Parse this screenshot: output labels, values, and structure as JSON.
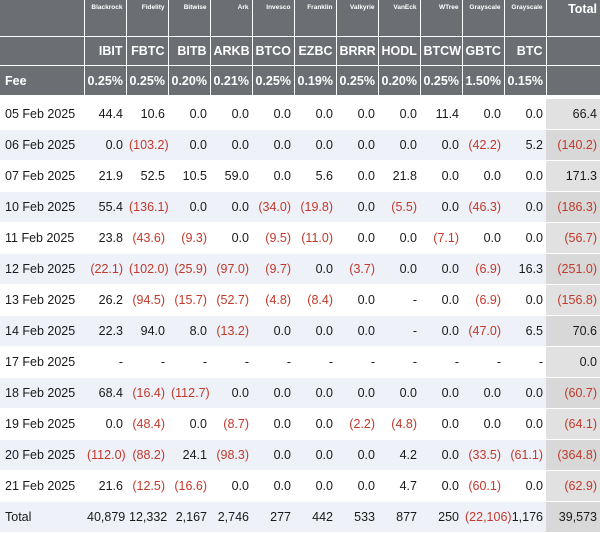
{
  "chart_data": {
    "type": "table",
    "columns": [
      {
        "issuer": "Blackrock",
        "ticker": "IBIT",
        "fee": "0.25%"
      },
      {
        "issuer": "Fidelity",
        "ticker": "FBTC",
        "fee": "0.25%"
      },
      {
        "issuer": "Bitwise",
        "ticker": "BITB",
        "fee": "0.20%"
      },
      {
        "issuer": "Ark",
        "ticker": "ARKB",
        "fee": "0.21%"
      },
      {
        "issuer": "Invesco",
        "ticker": "BTCO",
        "fee": "0.25%"
      },
      {
        "issuer": "Franklin",
        "ticker": "EZBC",
        "fee": "0.19%"
      },
      {
        "issuer": "Valkyrie",
        "ticker": "BRRR",
        "fee": "0.25%"
      },
      {
        "issuer": "VanEck",
        "ticker": "HODL",
        "fee": "0.20%"
      },
      {
        "issuer": "WTree",
        "ticker": "BTCW",
        "fee": "0.25%"
      },
      {
        "issuer": "Grayscale",
        "ticker": "GBTC",
        "fee": "1.50%"
      },
      {
        "issuer": "Grayscale",
        "ticker": "BTC",
        "fee": "0.15%"
      }
    ],
    "total_header": "Total",
    "fee_label": "Fee",
    "rows": [
      {
        "date": "05 Feb 2025",
        "values": [
          "44.4",
          "10.6",
          "0.0",
          "0.0",
          "0.0",
          "0.0",
          "0.0",
          "0.0",
          "11.4",
          "0.0",
          "0.0"
        ],
        "total": "66.4"
      },
      {
        "date": "06 Feb 2025",
        "values": [
          "0.0",
          "(103.2)",
          "0.0",
          "0.0",
          "0.0",
          "0.0",
          "0.0",
          "0.0",
          "0.0",
          "(42.2)",
          "5.2"
        ],
        "total": "(140.2)"
      },
      {
        "date": "07 Feb 2025",
        "values": [
          "21.9",
          "52.5",
          "10.5",
          "59.0",
          "0.0",
          "5.6",
          "0.0",
          "21.8",
          "0.0",
          "0.0",
          "0.0"
        ],
        "total": "171.3"
      },
      {
        "date": "10 Feb 2025",
        "values": [
          "55.4",
          "(136.1)",
          "0.0",
          "0.0",
          "(34.0)",
          "(19.8)",
          "0.0",
          "(5.5)",
          "0.0",
          "(46.3)",
          "0.0"
        ],
        "total": "(186.3)"
      },
      {
        "date": "11 Feb 2025",
        "values": [
          "23.8",
          "(43.6)",
          "(9.3)",
          "0.0",
          "(9.5)",
          "(11.0)",
          "0.0",
          "0.0",
          "(7.1)",
          "0.0",
          "0.0"
        ],
        "total": "(56.7)"
      },
      {
        "date": "12 Feb 2025",
        "values": [
          "(22.1)",
          "(102.0)",
          "(25.9)",
          "(97.0)",
          "(9.7)",
          "0.0",
          "(3.7)",
          "0.0",
          "0.0",
          "(6.9)",
          "16.3"
        ],
        "total": "(251.0)"
      },
      {
        "date": "13 Feb 2025",
        "values": [
          "26.2",
          "(94.5)",
          "(15.7)",
          "(52.7)",
          "(4.8)",
          "(8.4)",
          "0.0",
          "-",
          "0.0",
          "(6.9)",
          "0.0"
        ],
        "total": "(156.8)"
      },
      {
        "date": "14 Feb 2025",
        "values": [
          "22.3",
          "94.0",
          "8.0",
          "(13.2)",
          "0.0",
          "0.0",
          "0.0",
          "-",
          "0.0",
          "(47.0)",
          "6.5"
        ],
        "total": "70.6"
      },
      {
        "date": "17 Feb 2025",
        "values": [
          "-",
          "-",
          "-",
          "-",
          "-",
          "-",
          "-",
          "-",
          "-",
          "-",
          "-"
        ],
        "total": "0.0"
      },
      {
        "date": "18 Feb 2025",
        "values": [
          "68.4",
          "(16.4)",
          "(112.7)",
          "0.0",
          "0.0",
          "0.0",
          "0.0",
          "0.0",
          "0.0",
          "0.0",
          "0.0"
        ],
        "total": "(60.7)"
      },
      {
        "date": "19 Feb 2025",
        "values": [
          "0.0",
          "(48.4)",
          "0.0",
          "(8.7)",
          "0.0",
          "0.0",
          "(2.2)",
          "(4.8)",
          "0.0",
          "0.0",
          "0.0"
        ],
        "total": "(64.1)"
      },
      {
        "date": "20 Feb 2025",
        "values": [
          "(112.0)",
          "(88.2)",
          "24.1",
          "(98.3)",
          "0.0",
          "0.0",
          "0.0",
          "4.2",
          "0.0",
          "(33.5)",
          "(61.1)"
        ],
        "total": "(364.8)"
      },
      {
        "date": "21 Feb 2025",
        "values": [
          "21.6",
          "(12.5)",
          "(16.6)",
          "0.0",
          "0.0",
          "0.0",
          "0.0",
          "4.7",
          "0.0",
          "(60.1)",
          "0.0"
        ],
        "total": "(62.9)"
      }
    ],
    "totals_row": {
      "label": "Total",
      "values": [
        "40,879",
        "12,332",
        "2,167",
        "2,746",
        "277",
        "442",
        "533",
        "877",
        "250",
        "(22,106)",
        "1,176"
      ],
      "total": "39,573"
    }
  },
  "colors": {
    "header_bg": "#6b6f73",
    "negative": "#c0392b",
    "stripe": "#eef1f8",
    "total_col": "#e1e1e1"
  }
}
